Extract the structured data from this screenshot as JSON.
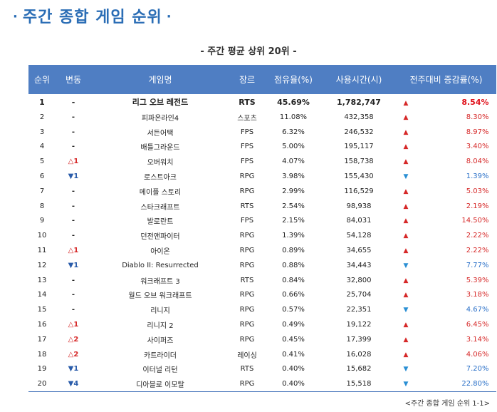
{
  "title": "주간 종합 게임 순위",
  "title_dot": "·",
  "subtitle": "- 주간 평균 상위 20위 -",
  "footnote": "<주간 종합 게임 순위 1-1>",
  "table": {
    "headers": [
      "순위",
      "변동",
      "게임명",
      "장르",
      "점유율(%)",
      "사용시간(시)",
      "전주대비 증감률(%)"
    ],
    "rows": [
      {
        "rank": "1",
        "change": "-",
        "change_dir": "none",
        "name": "리그 오브 레전드",
        "genre": "RTS",
        "share": "45.69%",
        "hours": "1,782,747",
        "trend": "up",
        "rate": "8.54%"
      },
      {
        "rank": "2",
        "change": "-",
        "change_dir": "none",
        "name": "피파온라인4",
        "genre": "스포츠",
        "share": "11.08%",
        "hours": "432,358",
        "trend": "up",
        "rate": "8.30%"
      },
      {
        "rank": "3",
        "change": "-",
        "change_dir": "none",
        "name": "서든어택",
        "genre": "FPS",
        "share": "6.32%",
        "hours": "246,532",
        "trend": "up",
        "rate": "8.97%"
      },
      {
        "rank": "4",
        "change": "-",
        "change_dir": "none",
        "name": "배틀그라운드",
        "genre": "FPS",
        "share": "5.00%",
        "hours": "195,117",
        "trend": "up",
        "rate": "3.40%"
      },
      {
        "rank": "5",
        "change": "△1",
        "change_dir": "up",
        "name": "오버워치",
        "genre": "FPS",
        "share": "4.07%",
        "hours": "158,738",
        "trend": "up",
        "rate": "8.04%"
      },
      {
        "rank": "6",
        "change": "▼1",
        "change_dir": "down",
        "name": "로스트아크",
        "genre": "RPG",
        "share": "3.98%",
        "hours": "155,430",
        "trend": "down",
        "rate": "1.39%"
      },
      {
        "rank": "7",
        "change": "-",
        "change_dir": "none",
        "name": "메이플 스토리",
        "genre": "RPG",
        "share": "2.99%",
        "hours": "116,529",
        "trend": "up",
        "rate": "5.03%"
      },
      {
        "rank": "8",
        "change": "-",
        "change_dir": "none",
        "name": "스타크래프트",
        "genre": "RTS",
        "share": "2.54%",
        "hours": "98,938",
        "trend": "up",
        "rate": "2.19%"
      },
      {
        "rank": "9",
        "change": "-",
        "change_dir": "none",
        "name": "발로란트",
        "genre": "FPS",
        "share": "2.15%",
        "hours": "84,031",
        "trend": "up",
        "rate": "14.50%"
      },
      {
        "rank": "10",
        "change": "-",
        "change_dir": "none",
        "name": "던전앤파이터",
        "genre": "RPG",
        "share": "1.39%",
        "hours": "54,128",
        "trend": "up",
        "rate": "2.22%"
      },
      {
        "rank": "11",
        "change": "△1",
        "change_dir": "up",
        "name": "아이온",
        "genre": "RPG",
        "share": "0.89%",
        "hours": "34,655",
        "trend": "up",
        "rate": "2.22%"
      },
      {
        "rank": "12",
        "change": "▼1",
        "change_dir": "down",
        "name": "Diablo II: Resurrected",
        "genre": "RPG",
        "share": "0.88%",
        "hours": "34,443",
        "trend": "down",
        "rate": "7.77%"
      },
      {
        "rank": "13",
        "change": "-",
        "change_dir": "none",
        "name": "워크래프트 3",
        "genre": "RTS",
        "share": "0.84%",
        "hours": "32,800",
        "trend": "up",
        "rate": "5.39%"
      },
      {
        "rank": "14",
        "change": "-",
        "change_dir": "none",
        "name": "월드 오브 워크래프트",
        "genre": "RPG",
        "share": "0.66%",
        "hours": "25,704",
        "trend": "up",
        "rate": "3.18%"
      },
      {
        "rank": "15",
        "change": "-",
        "change_dir": "none",
        "name": "리니지",
        "genre": "RPG",
        "share": "0.57%",
        "hours": "22,351",
        "trend": "down",
        "rate": "4.67%"
      },
      {
        "rank": "16",
        "change": "△1",
        "change_dir": "up",
        "name": "리니지 2",
        "genre": "RPG",
        "share": "0.49%",
        "hours": "19,122",
        "trend": "up",
        "rate": "6.45%"
      },
      {
        "rank": "17",
        "change": "△2",
        "change_dir": "up",
        "name": "사이퍼즈",
        "genre": "RPG",
        "share": "0.45%",
        "hours": "17,399",
        "trend": "up",
        "rate": "3.14%"
      },
      {
        "rank": "18",
        "change": "△2",
        "change_dir": "up",
        "name": "카트라이더",
        "genre": "레이싱",
        "share": "0.41%",
        "hours": "16,028",
        "trend": "up",
        "rate": "4.06%"
      },
      {
        "rank": "19",
        "change": "▼1",
        "change_dir": "down",
        "name": "이터널 리턴",
        "genre": "RTS",
        "share": "0.40%",
        "hours": "15,682",
        "trend": "down",
        "rate": "7.20%"
      },
      {
        "rank": "20",
        "change": "▼4",
        "change_dir": "down",
        "name": "디아블로 이모탈",
        "genre": "RPG",
        "share": "0.40%",
        "hours": "15,518",
        "trend": "down",
        "rate": "22.80%"
      }
    ]
  },
  "trend_icons": {
    "up": "▲",
    "down": "▼"
  },
  "colors": {
    "header_bg": "#4f7ec3",
    "title": "#2a6db5",
    "up": "#d62828",
    "down": "#2a70c8"
  }
}
